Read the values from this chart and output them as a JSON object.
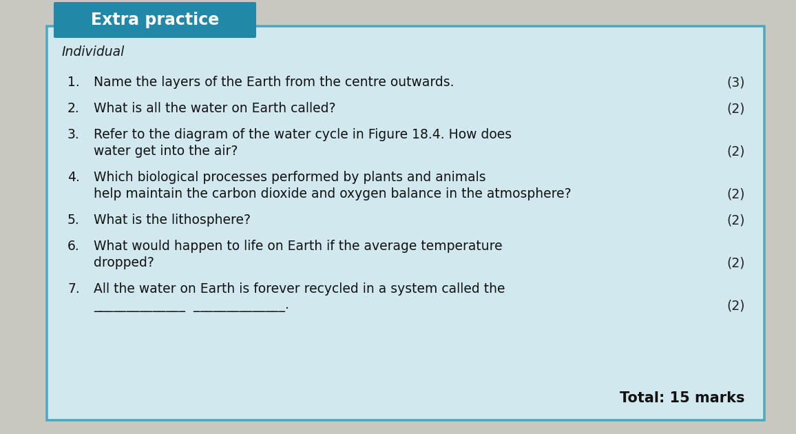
{
  "title": "Extra practice",
  "title_bg_color": "#2288a8",
  "title_text_color": "#ffffff",
  "section_label": "Individual",
  "box_bg_color": "#d0e8ee",
  "box_border_color": "#4aa8be",
  "overall_bg_color": "#c8c8c0",
  "questions": [
    {
      "num": "1.",
      "line1": "Name the layers of the Earth from the centre outwards.",
      "line2": "",
      "marks": "(3)",
      "marks_on_line": 1
    },
    {
      "num": "2.",
      "line1": "What is all the water on Earth called?",
      "line2": "",
      "marks": "(2)",
      "marks_on_line": 1
    },
    {
      "num": "3.",
      "line1": "Refer to the diagram of the water cycle in Figure 18.4. How does",
      "line2": "water get into the air?",
      "marks": "(2)",
      "marks_on_line": 2
    },
    {
      "num": "4.",
      "line1": "Which biological processes performed by plants and animals",
      "line2": "help maintain the carbon dioxide and oxygen balance in the atmosphere?",
      "marks": "(2)",
      "marks_on_line": 2
    },
    {
      "num": "5.",
      "line1": "What is the lithosphere?",
      "line2": "",
      "marks": "(2)",
      "marks_on_line": 1
    },
    {
      "num": "6.",
      "line1": "What would happen to life on Earth if the average temperature",
      "line2": "dropped?",
      "marks": "(2)",
      "marks_on_line": 2
    },
    {
      "num": "7.",
      "line1": "All the water on Earth is forever recycled in a system called the",
      "line2": "______________  ______________.",
      "marks": "(2)",
      "marks_on_line": 2
    }
  ],
  "total_text": "Total: 15 marks",
  "figsize": [
    11.56,
    6.3
  ],
  "dpi": 100
}
